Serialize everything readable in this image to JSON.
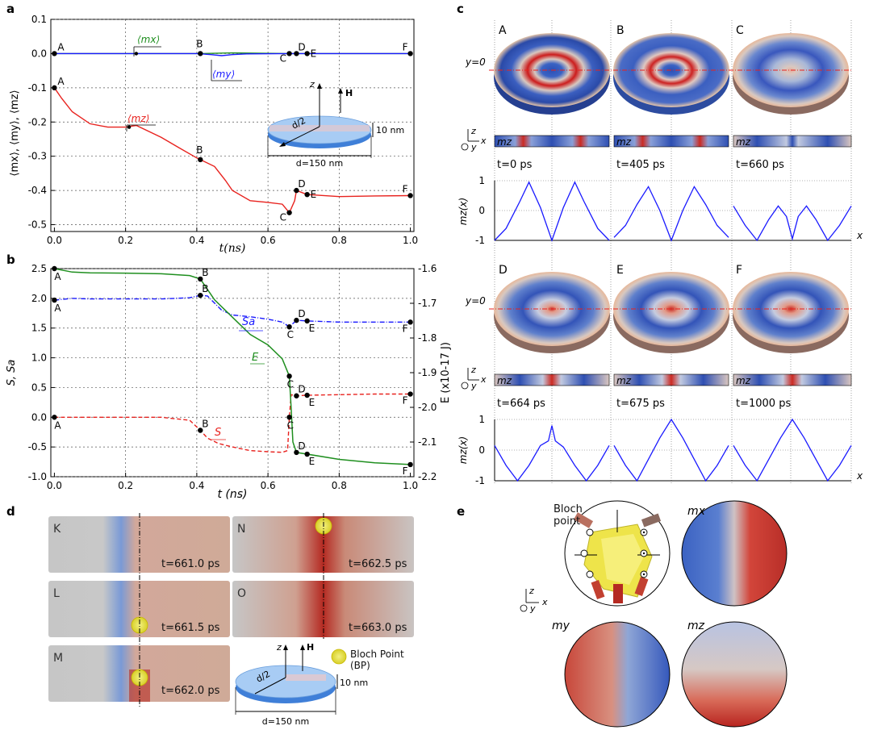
{
  "panel_labels": {
    "a": "a",
    "b": "b",
    "c": "c",
    "d": "d",
    "e": "e"
  },
  "panel_a": {
    "ylabel": "⟨mx⟩, ⟨my⟩, ⟨mz⟩",
    "xlabel": "t(ns)",
    "yticks": [
      "0.1",
      "0.0",
      "-0.1",
      "-0.2",
      "-0.3",
      "-0.4",
      "-0.5"
    ],
    "xticks": [
      "0.0",
      "0.2",
      "0.4",
      "0.6",
      "0.8",
      "1.0"
    ],
    "series_labels": {
      "mx": "⟨mx⟩",
      "my": "⟨my⟩",
      "mz": "⟨mz⟩"
    },
    "point_labels": [
      "A",
      "B",
      "C",
      "D",
      "E",
      "F"
    ],
    "inset": {
      "z": "z",
      "H": "H",
      "d2": "d/2",
      "thickness": "10 nm",
      "diameter": "d=150 nm"
    },
    "colors": {
      "mx": "#1f8f1f",
      "my": "#1a1aff",
      "mz": "#e8221e"
    }
  },
  "panel_b": {
    "ylabel_left": "S, Sa",
    "ylabel_right": "E (x10-17 J)",
    "xlabel": "t (ns)",
    "yticks_left": [
      "2.5",
      "2.0",
      "1.5",
      "1.0",
      "0.5",
      "0.0",
      "-0.5",
      "-1.0"
    ],
    "yticks_right": [
      "-1.6",
      "-1.7",
      "-1.8",
      "-1.9",
      "-2.0",
      "-2.1",
      "-2.2"
    ],
    "xticks": [
      "0.0",
      "0.2",
      "0.4",
      "0.6",
      "0.8",
      "1.0"
    ],
    "series_labels": {
      "Sa": "Sa",
      "E": "E",
      "S": "S"
    },
    "colors": {
      "Sa": "#1a1aff",
      "E": "#1f8f1f",
      "S": "#e8221e"
    }
  },
  "panel_c": {
    "disk_labels": [
      "A",
      "B",
      "C",
      "D",
      "E",
      "F"
    ],
    "y0": "y=0",
    "mz_label": "mz",
    "times": [
      "t=0 ps",
      "t=405 ps",
      "t=660 ps",
      "t=664 ps",
      "t=675 ps",
      "t=1000 ps"
    ],
    "plot_ylabel": "mz(x)",
    "plot_yticks": [
      "1",
      "0",
      "-1"
    ],
    "x_label": "x",
    "axes_z": "z",
    "axes_y": "y",
    "axes_x": "x"
  },
  "panel_d": {
    "frames": [
      {
        "letter": "K",
        "time": "t=661.0 ps"
      },
      {
        "letter": "N",
        "time": "t=662.5 ps"
      },
      {
        "letter": "L",
        "time": "t=661.5 ps"
      },
      {
        "letter": "O",
        "time": "t=663.0 ps"
      },
      {
        "letter": "M",
        "time": "t=662.0 ps"
      }
    ],
    "bp_legend": "Bloch Point (BP)",
    "inset": {
      "z": "z",
      "H": "H",
      "d2": "d/2",
      "thickness": "10 nm",
      "diameter": "d=150 nm"
    }
  },
  "panel_e": {
    "bloch_point": "Bloch point",
    "mx": "mx",
    "my": "my",
    "mz": "mz",
    "axes_z": "z",
    "axes_y": "y",
    "axes_x": "x"
  },
  "chart_data": [
    {
      "type": "line",
      "title": "",
      "xlabel": "t(ns)",
      "ylabel": "⟨mx⟩, ⟨my⟩, ⟨mz⟩",
      "xlim": [
        -0.01,
        1.01
      ],
      "ylim": [
        -0.52,
        0.1
      ],
      "series": [
        {
          "name": "⟨mx⟩",
          "x": [
            0,
            0.23,
            0.41,
            0.5,
            0.66,
            0.68,
            0.71,
            1.0
          ],
          "y": [
            0.0,
            0.0,
            0.0,
            0.002,
            0.0,
            0.0,
            0.0,
            0.0
          ]
        },
        {
          "name": "⟨my⟩",
          "x": [
            0,
            0.4,
            0.44,
            0.47,
            0.5,
            0.54,
            0.66,
            1.0
          ],
          "y": [
            0.0,
            0.0,
            -0.003,
            -0.006,
            -0.003,
            -0.001,
            0.0,
            0.0
          ]
        },
        {
          "name": "⟨mz⟩",
          "x": [
            0,
            0.02,
            0.05,
            0.1,
            0.15,
            0.2,
            0.23,
            0.3,
            0.35,
            0.4,
            0.41,
            0.45,
            0.48,
            0.5,
            0.55,
            0.6,
            0.64,
            0.66,
            0.675,
            0.68,
            0.71,
            0.8,
            0.9,
            1.0
          ],
          "y": [
            -0.1,
            -0.13,
            -0.17,
            -0.205,
            -0.215,
            -0.215,
            -0.21,
            -0.245,
            -0.275,
            -0.305,
            -0.31,
            -0.33,
            -0.37,
            -0.4,
            -0.43,
            -0.435,
            -0.44,
            -0.465,
            -0.43,
            -0.4,
            -0.412,
            -0.418,
            -0.416,
            -0.415
          ]
        }
      ],
      "points": {
        "A": 0,
        "B": 0.41,
        "C": 0.66,
        "D": 0.68,
        "E": 0.71,
        "F": 1.0
      }
    },
    {
      "type": "line",
      "title": "",
      "xlabel": "t (ns)",
      "ylabel": "S, Sa",
      "ylabel_right": "E (x10-17 J)",
      "xlim": [
        -0.01,
        1.01
      ],
      "ylim": [
        -1.0,
        2.5
      ],
      "ylim_right": [
        -2.2,
        -1.6
      ],
      "series": [
        {
          "name": "Sa",
          "axis": "left",
          "x": [
            0,
            0.05,
            0.1,
            0.2,
            0.3,
            0.38,
            0.41,
            0.43,
            0.45,
            0.47,
            0.5,
            0.55,
            0.6,
            0.64,
            0.66,
            0.68,
            0.71,
            0.8,
            0.9,
            1.0
          ],
          "y": [
            1.97,
            2.0,
            1.99,
            1.99,
            1.99,
            2.01,
            2.05,
            2.04,
            1.92,
            1.8,
            1.72,
            1.69,
            1.65,
            1.6,
            1.52,
            1.63,
            1.62,
            1.6,
            1.6,
            1.6
          ]
        },
        {
          "name": "S",
          "axis": "left",
          "x": [
            0,
            0.05,
            0.1,
            0.2,
            0.3,
            0.38,
            0.41,
            0.43,
            0.46,
            0.5,
            0.55,
            0.6,
            0.64,
            0.655,
            0.66,
            0.665,
            0.68,
            0.71,
            0.8,
            0.9,
            1.0
          ],
          "y": [
            0.0,
            0.0,
            0.0,
            0.0,
            0.0,
            -0.05,
            -0.22,
            -0.35,
            -0.44,
            -0.5,
            -0.56,
            -0.58,
            -0.59,
            -0.56,
            0.0,
            0.38,
            0.36,
            0.37,
            0.38,
            0.39,
            0.39
          ]
        },
        {
          "name": "E",
          "axis": "right",
          "x": [
            0,
            0.05,
            0.1,
            0.2,
            0.3,
            0.38,
            0.41,
            0.45,
            0.5,
            0.55,
            0.6,
            0.64,
            0.66,
            0.665,
            0.67,
            0.68,
            0.71,
            0.8,
            0.9,
            1.0
          ],
          "y": [
            -1.6,
            -1.61,
            -1.612,
            -1.613,
            -1.615,
            -1.62,
            -1.63,
            -1.69,
            -1.74,
            -1.79,
            -1.82,
            -1.86,
            -1.91,
            -2.0,
            -2.1,
            -2.13,
            -2.135,
            -2.15,
            -2.16,
            -2.165
          ]
        }
      ],
      "points": {
        "A": 0,
        "B": 0.41,
        "C": 0.66,
        "D": 0.68,
        "E": 0.71,
        "F": 1.0
      }
    },
    {
      "type": "line",
      "title": "",
      "xlabel": "x",
      "ylabel": "mz(x)",
      "ylim": [
        -1,
        1
      ],
      "series": [
        {
          "name": "t=0 ps",
          "x": [
            0,
            0.1,
            0.22,
            0.3,
            0.4,
            0.5,
            0.6,
            0.7,
            0.78,
            0.9,
            1.0
          ],
          "y": [
            -1,
            -0.6,
            0.3,
            0.95,
            0.1,
            -1,
            0.1,
            0.95,
            0.3,
            -0.6,
            -1
          ]
        },
        {
          "name": "t=405 ps",
          "x": [
            0,
            0.1,
            0.2,
            0.3,
            0.4,
            0.5,
            0.6,
            0.7,
            0.8,
            0.9,
            1.0
          ],
          "y": [
            -0.9,
            -0.5,
            0.2,
            0.8,
            0.0,
            -1,
            0.0,
            0.8,
            0.2,
            -0.5,
            -0.9
          ]
        },
        {
          "name": "t=660 ps",
          "x": [
            0,
            0.1,
            0.2,
            0.3,
            0.38,
            0.45,
            0.5,
            0.55,
            0.62,
            0.7,
            0.8,
            0.9,
            1.0
          ],
          "y": [
            0.15,
            -0.5,
            -1,
            -0.3,
            0.15,
            -0.2,
            -0.95,
            -0.2,
            0.15,
            -0.3,
            -1,
            -0.5,
            0.15
          ]
        },
        {
          "name": "t=664 ps",
          "x": [
            0,
            0.1,
            0.2,
            0.3,
            0.4,
            0.47,
            0.5,
            0.53,
            0.6,
            0.7,
            0.8,
            0.9,
            1.0
          ],
          "y": [
            0.15,
            -0.5,
            -1,
            -0.5,
            0.15,
            0.3,
            0.8,
            0.3,
            0.1,
            -0.5,
            -1,
            -0.5,
            0.15
          ]
        },
        {
          "name": "t=675 ps",
          "x": [
            0,
            0.1,
            0.2,
            0.3,
            0.4,
            0.5,
            0.6,
            0.7,
            0.8,
            0.9,
            1.0
          ],
          "y": [
            0.15,
            -0.5,
            -1,
            -0.3,
            0.4,
            1.0,
            0.4,
            -0.3,
            -1,
            -0.5,
            0.15
          ]
        },
        {
          "name": "t=1000 ps",
          "x": [
            0,
            0.1,
            0.2,
            0.3,
            0.4,
            0.5,
            0.6,
            0.7,
            0.8,
            0.9,
            1.0
          ],
          "y": [
            0.15,
            -0.5,
            -1,
            -0.3,
            0.4,
            1.0,
            0.4,
            -0.3,
            -1,
            -0.5,
            0.15
          ]
        }
      ]
    }
  ]
}
